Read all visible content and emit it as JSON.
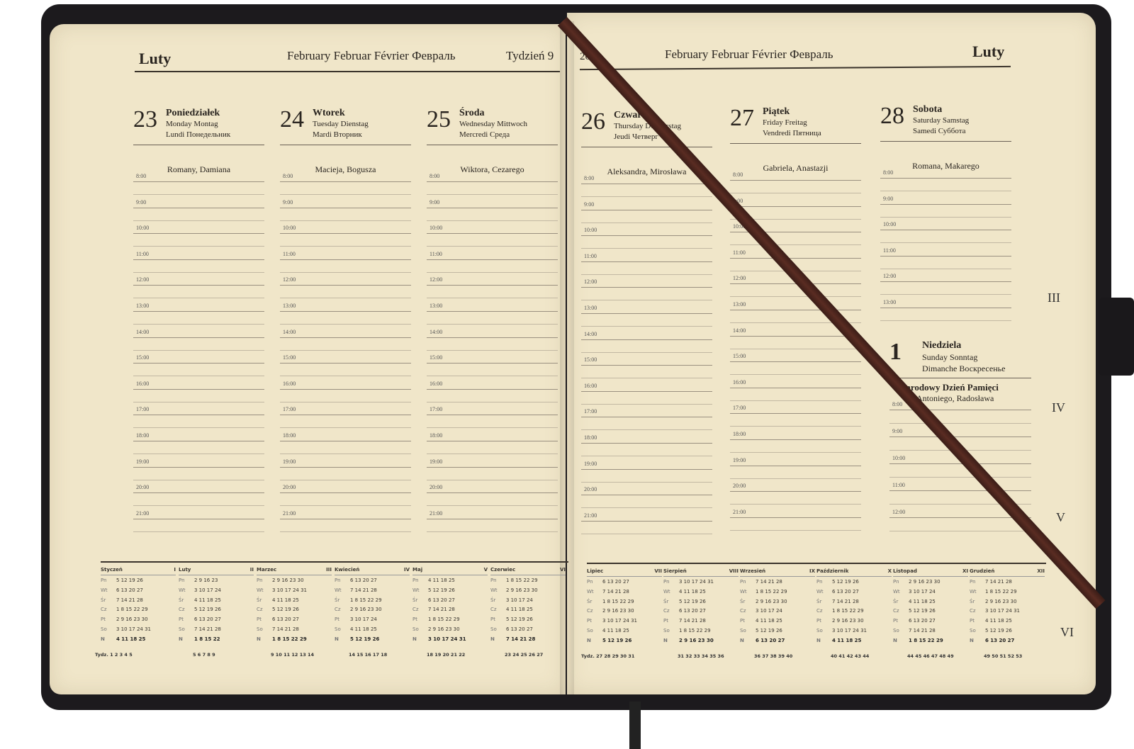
{
  "left": {
    "month_pl": "Luty",
    "month_multi": "February Februar Février Февраль",
    "week": "Tydzień 9",
    "days": [
      {
        "num": "23",
        "name": "Poniedziałek",
        "t1": "Monday Montag",
        "t2": "Lundi Понедельник",
        "nameday": "Romany, Damiana"
      },
      {
        "num": "24",
        "name": "Wtorek",
        "t1": "Tuesday Dienstag",
        "t2": "Mardi Вторник",
        "nameday": "Macieja, Bogusza"
      },
      {
        "num": "25",
        "name": "Środa",
        "t1": "Wednesday Mittwoch",
        "t2": "Mercredi Среда",
        "nameday": "Wiktora, Cezarego"
      }
    ],
    "hours": [
      "8:00",
      "9:00",
      "10:00",
      "11:00",
      "12:00",
      "13:00",
      "14:00",
      "15:00",
      "16:00",
      "17:00",
      "18:00",
      "19:00",
      "20:00",
      "21:00"
    ],
    "mini": [
      {
        "name": "Styczeń",
        "roman": "I",
        "rows": [
          "5 12 19 26",
          "6 13 20 27",
          "7 14 21 28",
          "1 8 15 22 29",
          "2 9 16 23 30",
          "3 10 17 24 31",
          "4 11 18 25"
        ]
      },
      {
        "name": "Luty",
        "roman": "II",
        "rows": [
          "2 9 16 23",
          "3 10 17 24",
          "4 11 18 25",
          "5 12 19 26",
          "6 13 20 27",
          "7 14 21 28",
          "1 8 15 22"
        ]
      },
      {
        "name": "Marzec",
        "roman": "III",
        "rows": [
          "2 9 16 23 30",
          "3 10 17 24 31",
          "4 11 18 25",
          "5 12 19 26",
          "6 13 20 27",
          "7 14 21 28",
          "1 8 15 22 29"
        ]
      },
      {
        "name": "Kwiecień",
        "roman": "IV",
        "rows": [
          "6 13 20 27",
          "7 14 21 28",
          "1 8 15 22 29",
          "2 9 16 23 30",
          "3 10 17 24",
          "4 11 18 25",
          "5 12 19 26"
        ]
      },
      {
        "name": "Maj",
        "roman": "V",
        "rows": [
          "4 11 18 25",
          "5 12 19 26",
          "6 13 20 27",
          "7 14 21 28",
          "1 8 15 22 29",
          "2 9 16 23 30",
          "3 10 17 24 31"
        ]
      },
      {
        "name": "Czerwiec",
        "roman": "VI",
        "rows": [
          "1 8 15 22 29",
          "2 9 16 23 30",
          "3 10 17 24",
          "4 11 18 25",
          "5 12 19 26",
          "6 13 20 27",
          "7 14 21 28"
        ]
      }
    ],
    "weeks": [
      "Tydz. 1 2 3 4 5",
      "5 6 7 8 9",
      "9 10 11 12 13 14",
      "14 15 16 17 18",
      "18 19 20 21 22",
      "23 24 25 26 27"
    ]
  },
  "right": {
    "year": "2026",
    "month_multi": "February Februar Février Февраль",
    "month_pl": "Luty",
    "days": [
      {
        "num": "26",
        "name": "Czwartek",
        "t1": "Thursday Donnerstag",
        "t2": "Jeudi Четверг",
        "nameday": "Aleksandra, Mirosława"
      },
      {
        "num": "27",
        "name": "Piątek",
        "t1": "Friday Freitag",
        "t2": "Vendredi Пятница",
        "nameday": "Gabriela, Anastazji"
      },
      {
        "num": "28",
        "name": "Sobota",
        "t1": "Saturday Samstag",
        "t2": "Samedi Суббота",
        "nameday": "Romana, Makarego"
      }
    ],
    "hours": [
      "8:00",
      "9:00",
      "10:00",
      "11:00",
      "12:00",
      "13:00",
      "14:00",
      "15:00",
      "16:00",
      "17:00",
      "18:00",
      "19:00",
      "20:00",
      "21:00"
    ],
    "saturday_hours": [
      "8:00",
      "9:00",
      "10:00",
      "11:00",
      "12:00",
      "13:00"
    ],
    "sunday": {
      "num": "1",
      "name": "Niedziela",
      "t1": "Sunday Sonntag",
      "t2": "Dimanche Воскресенье",
      "holiday": "Narodowy Dzień Pamięci",
      "nameday": "Antoniego, Radosława",
      "hours": [
        "8:00",
        "9:00",
        "10:00",
        "11:00",
        "12:00"
      ]
    },
    "mini": [
      {
        "name": "Lipiec",
        "roman": "VII",
        "rows": [
          "6 13 20 27",
          "7 14 21 28",
          "1 8 15 22 29",
          "2 9 16 23 30",
          "3 10 17 24 31",
          "4 11 18 25",
          "5 12 19 26"
        ]
      },
      {
        "name": "Sierpień",
        "roman": "VIII",
        "rows": [
          "3 10 17 24 31",
          "4 11 18 25",
          "5 12 19 26",
          "6 13 20 27",
          "7 14 21 28",
          "1 8 15 22 29",
          "2 9 16 23 30"
        ]
      },
      {
        "name": "Wrzesień",
        "roman": "IX",
        "rows": [
          "7 14 21 28",
          "1 8 15 22 29",
          "2 9 16 23 30",
          "3 10 17 24",
          "4 11 18 25",
          "5 12 19 26",
          "6 13 20 27"
        ]
      },
      {
        "name": "Październik",
        "roman": "X",
        "rows": [
          "5 12 19 26",
          "6 13 20 27",
          "7 14 21 28",
          "1 8 15 22 29",
          "2 9 16 23 30",
          "3 10 17 24 31",
          "4 11 18 25"
        ]
      },
      {
        "name": "Listopad",
        "roman": "XI",
        "rows": [
          "2 9 16 23 30",
          "3 10 17 24",
          "4 11 18 25",
          "5 12 19 26",
          "6 13 20 27",
          "7 14 21 28",
          "1 8 15 22 29"
        ]
      },
      {
        "name": "Grudzień",
        "roman": "XII",
        "rows": [
          "7 14 21 28",
          "1 8 15 22 29",
          "2 9 16 23 30",
          "3 10 17 24 31",
          "4 11 18 25",
          "5 12 19 26",
          "6 13 20 27"
        ]
      }
    ],
    "weeks": [
      "Tydz. 27 28 29 30 31",
      "31 32 33 34 35 36",
      "36 37 38 39 40",
      "40 41 42 43 44",
      "44 45 46 47 48 49",
      "49 50 51 52 53"
    ]
  },
  "weekday_abbr": [
    "Pn",
    "Wt",
    "Śr",
    "Cz",
    "Pt",
    "So",
    "N"
  ],
  "tabs": [
    "III",
    "IV",
    "V",
    "VI"
  ],
  "colors": {
    "paper": "#f0e6c9",
    "cover": "#1c1a1d",
    "ribbon": "#4a241c"
  }
}
